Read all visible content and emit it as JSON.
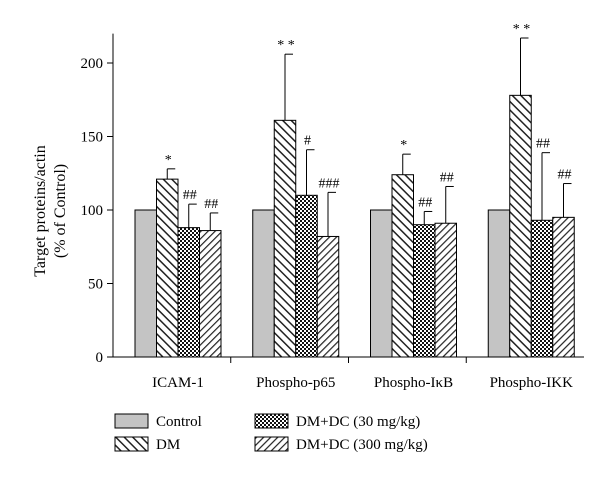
{
  "chart_data": {
    "type": "bar",
    "ylabel_line1": "Target proteins/actin",
    "ylabel_line2": "(% of Control)",
    "ylim": [
      0,
      220
    ],
    "yticks": [
      0,
      50,
      100,
      150,
      200
    ],
    "categories": [
      "ICAM-1",
      "Phospho-p65",
      "Phospho-IκB",
      "Phospho-IKK"
    ],
    "series": [
      {
        "name": "Control",
        "values": [
          100,
          100,
          100,
          100
        ],
        "errors": [
          0,
          0,
          0,
          0
        ],
        "sig": [
          "",
          "",
          "",
          ""
        ],
        "pattern": "solid-gray"
      },
      {
        "name": "DM",
        "values": [
          121,
          161,
          124,
          178
        ],
        "errors": [
          7,
          45,
          14,
          39
        ],
        "sig": [
          "*",
          "* *",
          "*",
          "* *"
        ],
        "pattern": "diagonal"
      },
      {
        "name": "DM+DC (30 mg/kg)",
        "values": [
          88,
          110,
          90,
          93
        ],
        "errors": [
          16,
          31,
          9,
          46
        ],
        "sig": [
          "##",
          "#",
          "##",
          "##"
        ],
        "pattern": "crosshatch"
      },
      {
        "name": "DM+DC (300 mg/kg)",
        "values": [
          86,
          82,
          91,
          95
        ],
        "errors": [
          12,
          30,
          25,
          23
        ],
        "sig": [
          "##",
          "###",
          "##",
          "##"
        ],
        "pattern": "diagonal-dense"
      }
    ],
    "legend_position": "bottom"
  }
}
